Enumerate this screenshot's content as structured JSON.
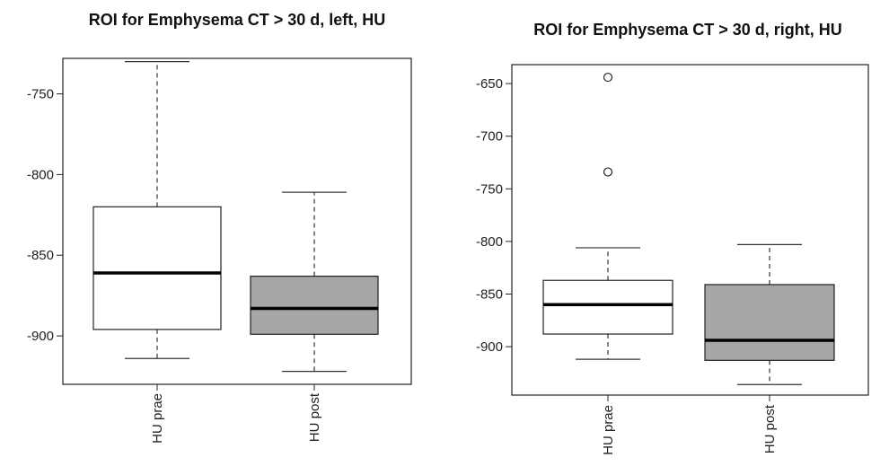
{
  "chart_data": [
    {
      "type": "boxplot",
      "title": "ROI for Emphysema CT > 30 d, left, HU",
      "xlabel": "",
      "ylabel": "",
      "ylim": [
        -930,
        -728
      ],
      "yticks": [
        -750,
        -800,
        -850,
        -900
      ],
      "categories": [
        "HU prae",
        "HU post"
      ],
      "fills": [
        "#ffffff",
        "#a6a6a6"
      ],
      "boxes": [
        {
          "name": "HU prae",
          "min": -914,
          "q1": -896,
          "median": -861,
          "q3": -820,
          "max": -730,
          "outliers": []
        },
        {
          "name": "HU post",
          "min": -922,
          "q1": -899,
          "median": -883,
          "q3": -863,
          "max": -811,
          "outliers": []
        }
      ]
    },
    {
      "type": "boxplot",
      "title": "ROI for Emphysema CT > 30 d, right, HU",
      "xlabel": "",
      "ylabel": "",
      "ylim": [
        -946,
        -632
      ],
      "yticks": [
        -650,
        -700,
        -750,
        -800,
        -850,
        -900
      ],
      "categories": [
        "HU prae",
        "HU post"
      ],
      "fills": [
        "#ffffff",
        "#a6a6a6"
      ],
      "boxes": [
        {
          "name": "HU prae",
          "min": -912,
          "q1": -888,
          "median": -860,
          "q3": -837,
          "max": -806,
          "outliers": [
            -644,
            -734
          ]
        },
        {
          "name": "HU post",
          "min": -936,
          "q1": -913,
          "median": -894,
          "q3": -841,
          "max": -803,
          "outliers": []
        }
      ]
    }
  ]
}
